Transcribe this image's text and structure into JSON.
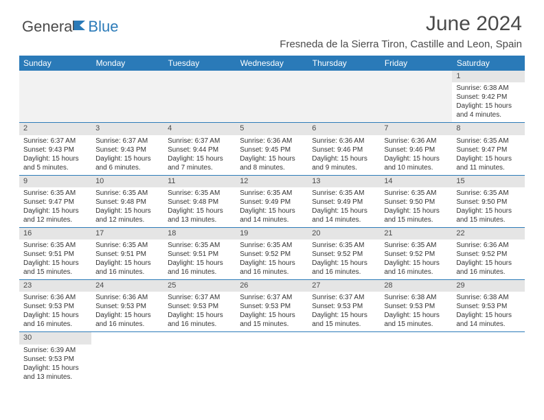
{
  "logo": {
    "part1": "Genera",
    "part2": "Blue"
  },
  "title": "June 2024",
  "location": "Fresneda de la Sierra Tiron, Castille and Leon, Spain",
  "colors": {
    "header_bg": "#2a7ab8",
    "header_text": "#ffffff",
    "daynum_bg": "#e5e5e5",
    "text": "#333333",
    "border": "#2a7ab8",
    "logo_gray": "#4a4a4a",
    "logo_blue": "#2a7ab8"
  },
  "daysOfWeek": [
    "Sunday",
    "Monday",
    "Tuesday",
    "Wednesday",
    "Thursday",
    "Friday",
    "Saturday"
  ],
  "weeks": [
    [
      null,
      null,
      null,
      null,
      null,
      null,
      {
        "n": "1",
        "sr": "Sunrise: 6:38 AM",
        "ss": "Sunset: 9:42 PM",
        "d1": "Daylight: 15 hours",
        "d2": "and 4 minutes."
      }
    ],
    [
      {
        "n": "2",
        "sr": "Sunrise: 6:37 AM",
        "ss": "Sunset: 9:43 PM",
        "d1": "Daylight: 15 hours",
        "d2": "and 5 minutes."
      },
      {
        "n": "3",
        "sr": "Sunrise: 6:37 AM",
        "ss": "Sunset: 9:43 PM",
        "d1": "Daylight: 15 hours",
        "d2": "and 6 minutes."
      },
      {
        "n": "4",
        "sr": "Sunrise: 6:37 AM",
        "ss": "Sunset: 9:44 PM",
        "d1": "Daylight: 15 hours",
        "d2": "and 7 minutes."
      },
      {
        "n": "5",
        "sr": "Sunrise: 6:36 AM",
        "ss": "Sunset: 9:45 PM",
        "d1": "Daylight: 15 hours",
        "d2": "and 8 minutes."
      },
      {
        "n": "6",
        "sr": "Sunrise: 6:36 AM",
        "ss": "Sunset: 9:46 PM",
        "d1": "Daylight: 15 hours",
        "d2": "and 9 minutes."
      },
      {
        "n": "7",
        "sr": "Sunrise: 6:36 AM",
        "ss": "Sunset: 9:46 PM",
        "d1": "Daylight: 15 hours",
        "d2": "and 10 minutes."
      },
      {
        "n": "8",
        "sr": "Sunrise: 6:35 AM",
        "ss": "Sunset: 9:47 PM",
        "d1": "Daylight: 15 hours",
        "d2": "and 11 minutes."
      }
    ],
    [
      {
        "n": "9",
        "sr": "Sunrise: 6:35 AM",
        "ss": "Sunset: 9:47 PM",
        "d1": "Daylight: 15 hours",
        "d2": "and 12 minutes."
      },
      {
        "n": "10",
        "sr": "Sunrise: 6:35 AM",
        "ss": "Sunset: 9:48 PM",
        "d1": "Daylight: 15 hours",
        "d2": "and 12 minutes."
      },
      {
        "n": "11",
        "sr": "Sunrise: 6:35 AM",
        "ss": "Sunset: 9:48 PM",
        "d1": "Daylight: 15 hours",
        "d2": "and 13 minutes."
      },
      {
        "n": "12",
        "sr": "Sunrise: 6:35 AM",
        "ss": "Sunset: 9:49 PM",
        "d1": "Daylight: 15 hours",
        "d2": "and 14 minutes."
      },
      {
        "n": "13",
        "sr": "Sunrise: 6:35 AM",
        "ss": "Sunset: 9:49 PM",
        "d1": "Daylight: 15 hours",
        "d2": "and 14 minutes."
      },
      {
        "n": "14",
        "sr": "Sunrise: 6:35 AM",
        "ss": "Sunset: 9:50 PM",
        "d1": "Daylight: 15 hours",
        "d2": "and 15 minutes."
      },
      {
        "n": "15",
        "sr": "Sunrise: 6:35 AM",
        "ss": "Sunset: 9:50 PM",
        "d1": "Daylight: 15 hours",
        "d2": "and 15 minutes."
      }
    ],
    [
      {
        "n": "16",
        "sr": "Sunrise: 6:35 AM",
        "ss": "Sunset: 9:51 PM",
        "d1": "Daylight: 15 hours",
        "d2": "and 15 minutes."
      },
      {
        "n": "17",
        "sr": "Sunrise: 6:35 AM",
        "ss": "Sunset: 9:51 PM",
        "d1": "Daylight: 15 hours",
        "d2": "and 16 minutes."
      },
      {
        "n": "18",
        "sr": "Sunrise: 6:35 AM",
        "ss": "Sunset: 9:51 PM",
        "d1": "Daylight: 15 hours",
        "d2": "and 16 minutes."
      },
      {
        "n": "19",
        "sr": "Sunrise: 6:35 AM",
        "ss": "Sunset: 9:52 PM",
        "d1": "Daylight: 15 hours",
        "d2": "and 16 minutes."
      },
      {
        "n": "20",
        "sr": "Sunrise: 6:35 AM",
        "ss": "Sunset: 9:52 PM",
        "d1": "Daylight: 15 hours",
        "d2": "and 16 minutes."
      },
      {
        "n": "21",
        "sr": "Sunrise: 6:35 AM",
        "ss": "Sunset: 9:52 PM",
        "d1": "Daylight: 15 hours",
        "d2": "and 16 minutes."
      },
      {
        "n": "22",
        "sr": "Sunrise: 6:36 AM",
        "ss": "Sunset: 9:52 PM",
        "d1": "Daylight: 15 hours",
        "d2": "and 16 minutes."
      }
    ],
    [
      {
        "n": "23",
        "sr": "Sunrise: 6:36 AM",
        "ss": "Sunset: 9:53 PM",
        "d1": "Daylight: 15 hours",
        "d2": "and 16 minutes."
      },
      {
        "n": "24",
        "sr": "Sunrise: 6:36 AM",
        "ss": "Sunset: 9:53 PM",
        "d1": "Daylight: 15 hours",
        "d2": "and 16 minutes."
      },
      {
        "n": "25",
        "sr": "Sunrise: 6:37 AM",
        "ss": "Sunset: 9:53 PM",
        "d1": "Daylight: 15 hours",
        "d2": "and 16 minutes."
      },
      {
        "n": "26",
        "sr": "Sunrise: 6:37 AM",
        "ss": "Sunset: 9:53 PM",
        "d1": "Daylight: 15 hours",
        "d2": "and 15 minutes."
      },
      {
        "n": "27",
        "sr": "Sunrise: 6:37 AM",
        "ss": "Sunset: 9:53 PM",
        "d1": "Daylight: 15 hours",
        "d2": "and 15 minutes."
      },
      {
        "n": "28",
        "sr": "Sunrise: 6:38 AM",
        "ss": "Sunset: 9:53 PM",
        "d1": "Daylight: 15 hours",
        "d2": "and 15 minutes."
      },
      {
        "n": "29",
        "sr": "Sunrise: 6:38 AM",
        "ss": "Sunset: 9:53 PM",
        "d1": "Daylight: 15 hours",
        "d2": "and 14 minutes."
      }
    ],
    [
      {
        "n": "30",
        "sr": "Sunrise: 6:39 AM",
        "ss": "Sunset: 9:53 PM",
        "d1": "Daylight: 15 hours",
        "d2": "and 13 minutes."
      },
      null,
      null,
      null,
      null,
      null,
      null
    ]
  ]
}
